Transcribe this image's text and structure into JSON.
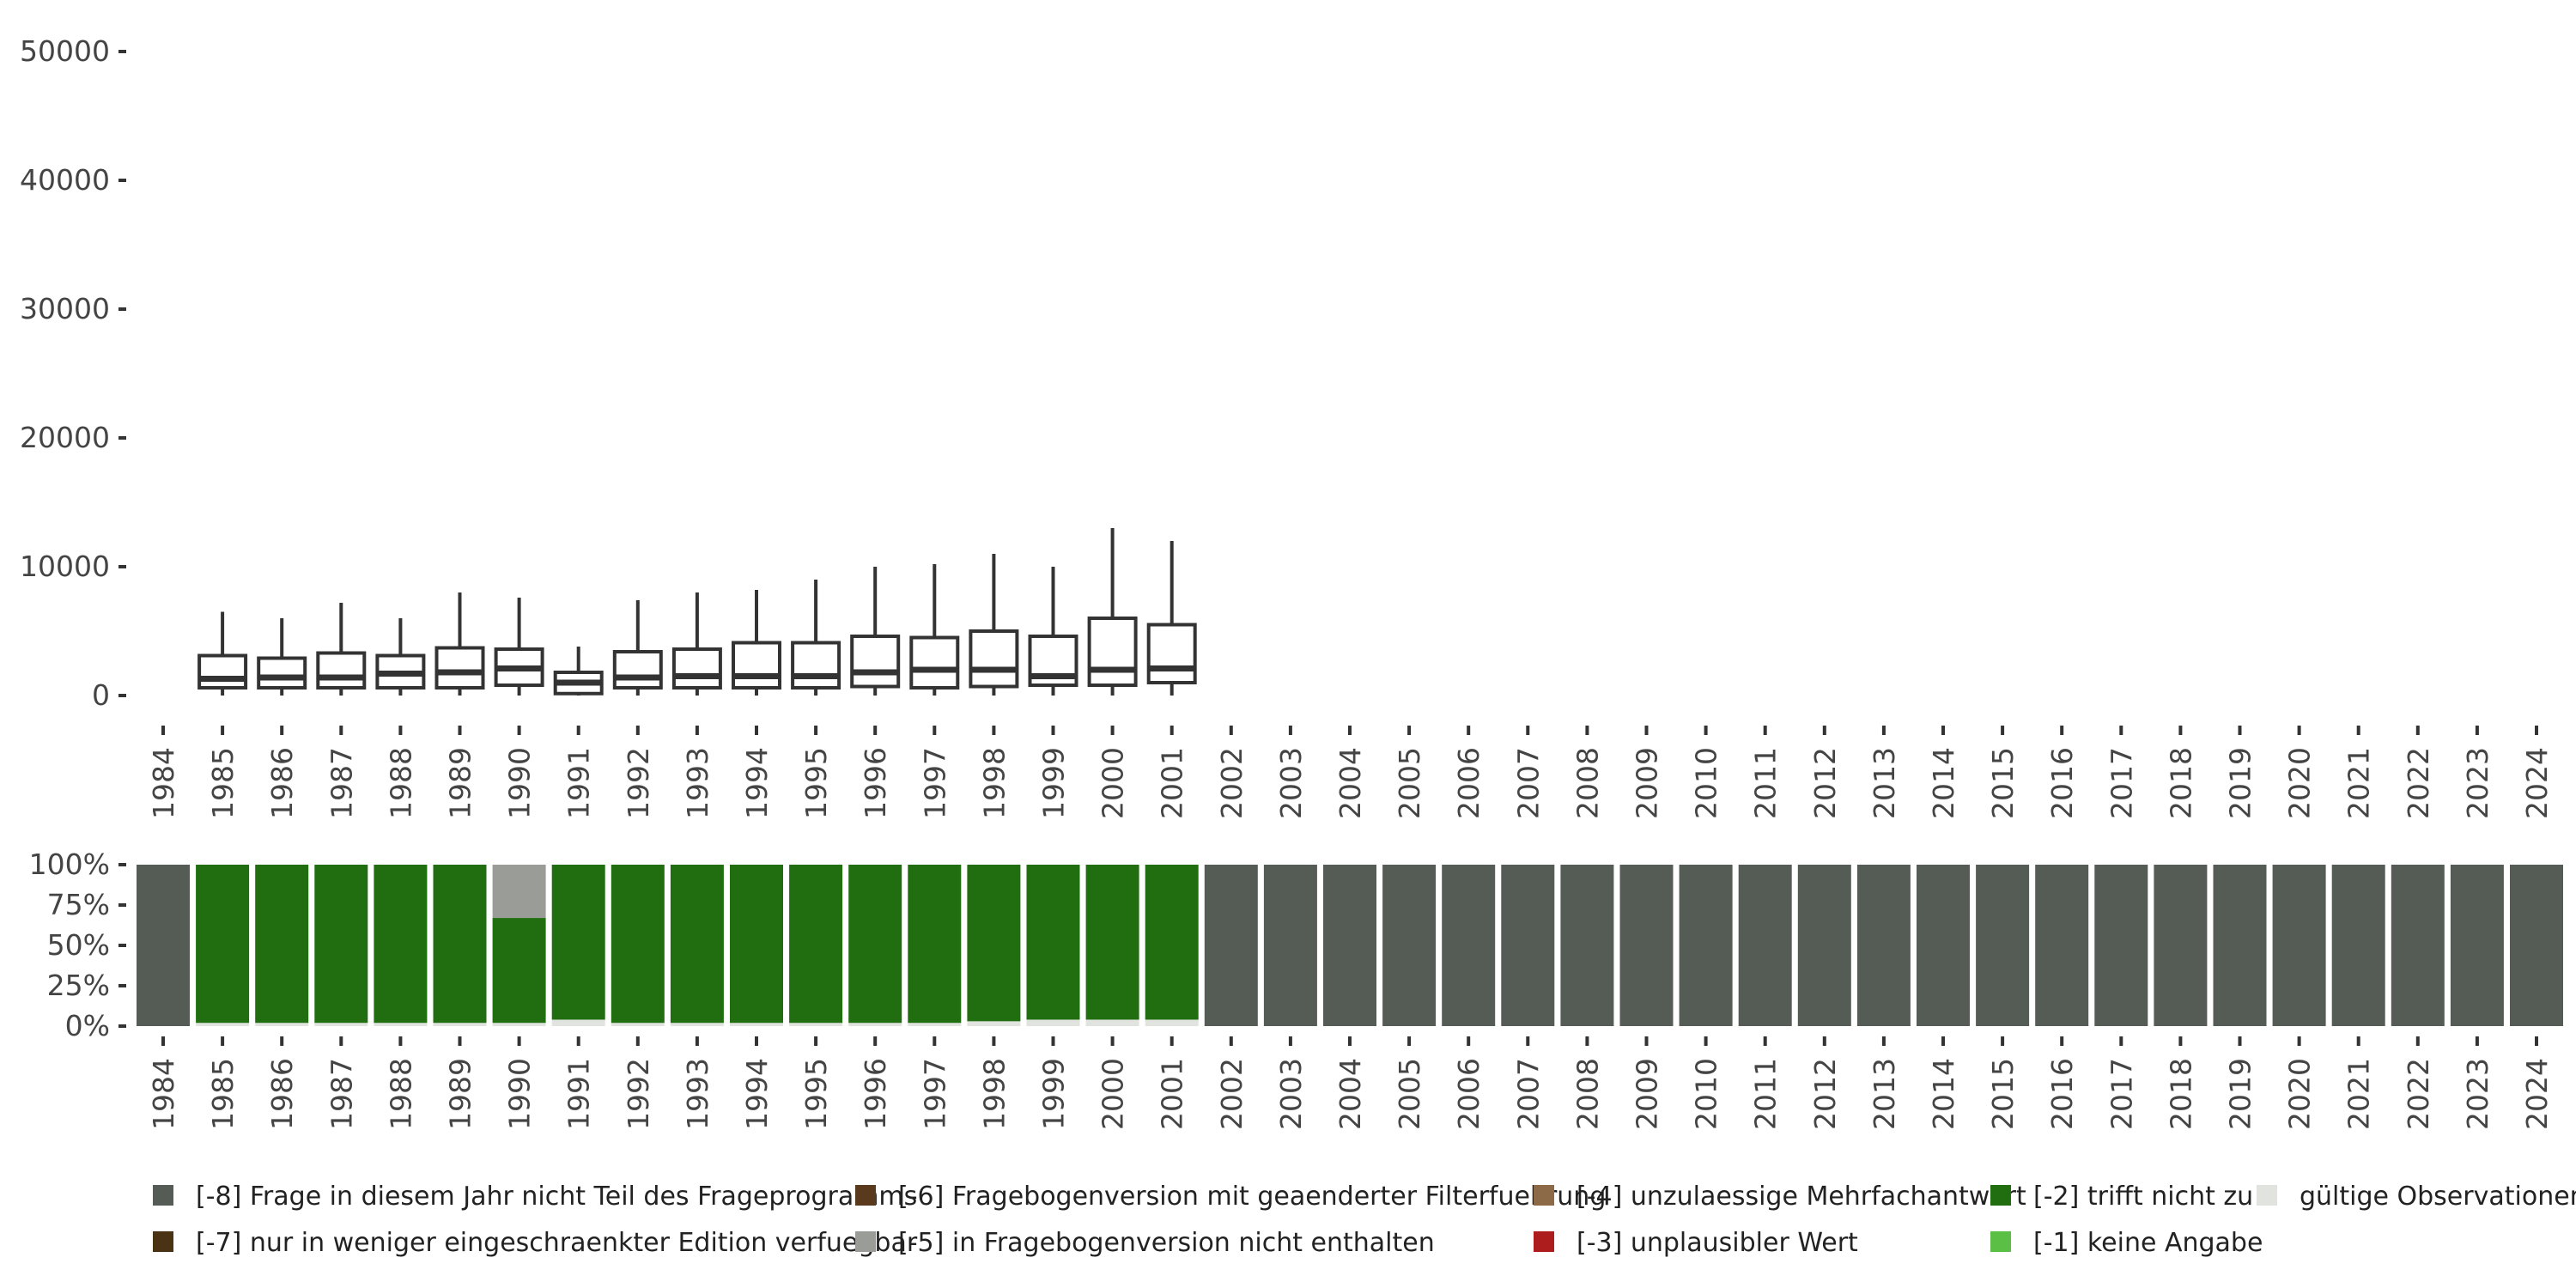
{
  "chart_data": [
    {
      "type": "box",
      "title": "",
      "xlabel": "",
      "ylabel": "",
      "ylim": [
        0,
        50000
      ],
      "y_ticks": [
        0,
        10000,
        20000,
        30000,
        40000,
        50000
      ],
      "y_tick_labels": [
        "0",
        "10000",
        "20000",
        "30000",
        "40000",
        "50000"
      ],
      "categories": [
        "1984",
        "1985",
        "1986",
        "1987",
        "1988",
        "1989",
        "1990",
        "1991",
        "1992",
        "1993",
        "1994",
        "1995",
        "1996",
        "1997",
        "1998",
        "1999",
        "2000",
        "2001",
        "2002",
        "2003",
        "2004",
        "2005",
        "2006",
        "2007",
        "2008",
        "2009",
        "2010",
        "2011",
        "2012",
        "2013",
        "2014",
        "2015",
        "2016",
        "2017",
        "2018",
        "2019",
        "2020",
        "2021",
        "2022",
        "2023",
        "2024"
      ],
      "boxes": [
        {
          "year": "1985",
          "low": 0,
          "q1": 600,
          "median": 1300,
          "q3": 3100,
          "high": 6500
        },
        {
          "year": "1986",
          "low": 0,
          "q1": 600,
          "median": 1400,
          "q3": 2900,
          "high": 6000
        },
        {
          "year": "1987",
          "low": 0,
          "q1": 600,
          "median": 1400,
          "q3": 3300,
          "high": 7200
        },
        {
          "year": "1988",
          "low": 0,
          "q1": 600,
          "median": 1700,
          "q3": 3100,
          "high": 6000
        },
        {
          "year": "1989",
          "low": 0,
          "q1": 600,
          "median": 1800,
          "q3": 3700,
          "high": 8000
        },
        {
          "year": "1990",
          "low": 0,
          "q1": 800,
          "median": 2100,
          "q3": 3600,
          "high": 7600
        },
        {
          "year": "1991",
          "low": 0,
          "q1": 150,
          "median": 1000,
          "q3": 1800,
          "high": 3800
        },
        {
          "year": "1992",
          "low": 0,
          "q1": 600,
          "median": 1400,
          "q3": 3400,
          "high": 7400
        },
        {
          "year": "1993",
          "low": 0,
          "q1": 600,
          "median": 1500,
          "q3": 3600,
          "high": 8000
        },
        {
          "year": "1994",
          "low": 0,
          "q1": 600,
          "median": 1500,
          "q3": 4100,
          "high": 8200
        },
        {
          "year": "1995",
          "low": 0,
          "q1": 600,
          "median": 1500,
          "q3": 4100,
          "high": 9000
        },
        {
          "year": "1996",
          "low": 0,
          "q1": 700,
          "median": 1800,
          "q3": 4600,
          "high": 10000
        },
        {
          "year": "1997",
          "low": 0,
          "q1": 600,
          "median": 2000,
          "q3": 4500,
          "high": 10200
        },
        {
          "year": "1998",
          "low": 0,
          "q1": 700,
          "median": 2000,
          "q3": 5000,
          "high": 11000
        },
        {
          "year": "1999",
          "low": 0,
          "q1": 800,
          "median": 1500,
          "q3": 4600,
          "high": 10000
        },
        {
          "year": "2000",
          "low": 0,
          "q1": 800,
          "median": 2000,
          "q3": 6000,
          "high": 13000
        },
        {
          "year": "2001",
          "low": 0,
          "q1": 1000,
          "median": 2100,
          "q3": 5500,
          "high": 12000
        }
      ]
    },
    {
      "type": "stacked-bar",
      "title": "",
      "ylim": [
        0,
        100
      ],
      "y_ticks": [
        0,
        25,
        50,
        75,
        100
      ],
      "y_tick_labels": [
        "0%",
        "25%",
        "50%",
        "75%",
        "100%"
      ],
      "categories": [
        "1984",
        "1985",
        "1986",
        "1987",
        "1988",
        "1989",
        "1990",
        "1991",
        "1992",
        "1993",
        "1994",
        "1995",
        "1996",
        "1997",
        "1998",
        "1999",
        "2000",
        "2001",
        "2002",
        "2003",
        "2004",
        "2005",
        "2006",
        "2007",
        "2008",
        "2009",
        "2010",
        "2011",
        "2012",
        "2013",
        "2014",
        "2015",
        "2016",
        "2017",
        "2018",
        "2019",
        "2020",
        "2021",
        "2022",
        "2023",
        "2024"
      ],
      "series": [
        {
          "name": "gültige Observationen",
          "color": "#e1e3df",
          "values": [
            0,
            2,
            2,
            2,
            2,
            2,
            2,
            4,
            2,
            2,
            2,
            2,
            2,
            2,
            3,
            4,
            4,
            4,
            0,
            0,
            0,
            0,
            0,
            0,
            0,
            0,
            0,
            0,
            0,
            0,
            0,
            0,
            0,
            0,
            0,
            0,
            0,
            0,
            0,
            0,
            0
          ]
        },
        {
          "name": "[-2] trifft nicht zu",
          "color": "#216e11",
          "values": [
            0,
            98,
            98,
            98,
            98,
            98,
            65,
            96,
            98,
            98,
            98,
            98,
            98,
            98,
            97,
            96,
            96,
            96,
            0,
            0,
            0,
            0,
            0,
            0,
            0,
            0,
            0,
            0,
            0,
            0,
            0,
            0,
            0,
            0,
            0,
            0,
            0,
            0,
            0,
            0,
            0
          ]
        },
        {
          "name": "[-5] in Fragebogenversion nicht enthalten",
          "color": "#9a9c98",
          "values": [
            0,
            0,
            0,
            0,
            0,
            0,
            33,
            0,
            0,
            0,
            0,
            0,
            0,
            0,
            0,
            0,
            0,
            0,
            0,
            0,
            0,
            0,
            0,
            0,
            0,
            0,
            0,
            0,
            0,
            0,
            0,
            0,
            0,
            0,
            0,
            0,
            0,
            0,
            0,
            0,
            0
          ]
        },
        {
          "name": "[-8] Frage in diesem Jahr nicht Teil des Frageprogramms",
          "color": "#555b55",
          "values": [
            100,
            0,
            0,
            0,
            0,
            0,
            0,
            0,
            0,
            0,
            0,
            0,
            0,
            0,
            0,
            0,
            0,
            0,
            100,
            100,
            100,
            100,
            100,
            100,
            100,
            100,
            100,
            100,
            100,
            100,
            100,
            100,
            100,
            100,
            100,
            100,
            100,
            100,
            100,
            100,
            100
          ]
        }
      ]
    }
  ],
  "legend": {
    "rows": [
      [
        {
          "label": "[-8] Frage in diesem Jahr nicht Teil des Frageprogramms",
          "color": "#555b55"
        },
        {
          "label": "[-6] Fragebogenversion mit geaenderter Filterfuehrung",
          "color": "#5a3a1d"
        },
        {
          "label": "[-4] unzulaessige Mehrfachantwort",
          "color": "#8c6a47"
        },
        {
          "label": "[-2] trifft nicht zu",
          "color": "#216e11"
        },
        {
          "label": "gültige Observationen",
          "color": "#e1e3df"
        }
      ],
      [
        {
          "label": "[-7] nur in weniger eingeschraenkter Edition verfuegbar",
          "color": "#4a3214"
        },
        {
          "label": "[-5] in Fragebogenversion nicht enthalten",
          "color": "#9a9c98"
        },
        {
          "label": "[-3] unplausibler Wert",
          "color": "#ad1d1d"
        },
        {
          "label": "[-1] keine Angabe",
          "color": "#5cbf45"
        }
      ]
    ]
  }
}
